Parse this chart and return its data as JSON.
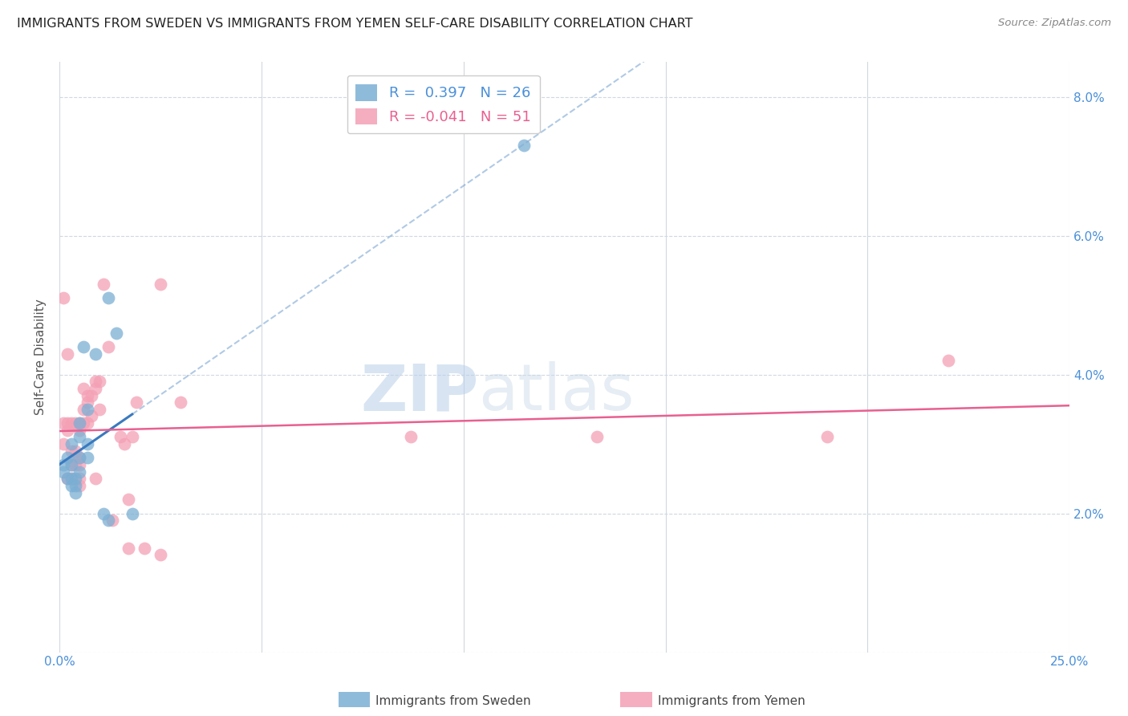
{
  "title": "IMMIGRANTS FROM SWEDEN VS IMMIGRANTS FROM YEMEN SELF-CARE DISABILITY CORRELATION CHART",
  "source": "Source: ZipAtlas.com",
  "ylabel": "Self-Care Disability",
  "xlim": [
    0.0,
    0.25
  ],
  "ylim": [
    0.0,
    0.085
  ],
  "xticks": [
    0.0,
    0.05,
    0.1,
    0.15,
    0.2,
    0.25
  ],
  "xticklabels": [
    "0.0%",
    "",
    "",
    "",
    "",
    "25.0%"
  ],
  "yticks": [
    0.0,
    0.02,
    0.04,
    0.06,
    0.08
  ],
  "yticklabels_right": [
    "",
    "2.0%",
    "4.0%",
    "6.0%",
    "8.0%"
  ],
  "sweden_color": "#7bafd4",
  "yemen_color": "#f4a0b5",
  "sweden_line_color": "#3a7abf",
  "yemen_line_color": "#e86090",
  "sweden_R": 0.397,
  "sweden_N": 26,
  "yemen_R": -0.041,
  "yemen_N": 51,
  "watermark_zip": "ZIP",
  "watermark_atlas": "atlas",
  "sweden_x": [
    0.001,
    0.001,
    0.002,
    0.002,
    0.003,
    0.003,
    0.003,
    0.003,
    0.004,
    0.004,
    0.004,
    0.005,
    0.005,
    0.005,
    0.005,
    0.006,
    0.007,
    0.007,
    0.007,
    0.009,
    0.011,
    0.012,
    0.012,
    0.014,
    0.018,
    0.115
  ],
  "sweden_y": [
    0.026,
    0.027,
    0.025,
    0.028,
    0.024,
    0.025,
    0.027,
    0.03,
    0.023,
    0.024,
    0.025,
    0.026,
    0.028,
    0.031,
    0.033,
    0.044,
    0.028,
    0.03,
    0.035,
    0.043,
    0.02,
    0.019,
    0.051,
    0.046,
    0.02,
    0.073
  ],
  "yemen_x": [
    0.001,
    0.001,
    0.001,
    0.002,
    0.002,
    0.002,
    0.002,
    0.003,
    0.003,
    0.003,
    0.003,
    0.004,
    0.004,
    0.004,
    0.004,
    0.005,
    0.005,
    0.005,
    0.005,
    0.005,
    0.005,
    0.006,
    0.006,
    0.006,
    0.007,
    0.007,
    0.007,
    0.008,
    0.008,
    0.009,
    0.009,
    0.009,
    0.01,
    0.01,
    0.011,
    0.012,
    0.013,
    0.015,
    0.016,
    0.017,
    0.017,
    0.018,
    0.019,
    0.021,
    0.025,
    0.025,
    0.03,
    0.087,
    0.133,
    0.19,
    0.22
  ],
  "yemen_y": [
    0.03,
    0.033,
    0.051,
    0.025,
    0.032,
    0.033,
    0.043,
    0.025,
    0.027,
    0.029,
    0.033,
    0.027,
    0.028,
    0.029,
    0.033,
    0.024,
    0.025,
    0.027,
    0.028,
    0.032,
    0.033,
    0.033,
    0.035,
    0.038,
    0.033,
    0.036,
    0.037,
    0.034,
    0.037,
    0.025,
    0.038,
    0.039,
    0.035,
    0.039,
    0.053,
    0.044,
    0.019,
    0.031,
    0.03,
    0.022,
    0.015,
    0.031,
    0.036,
    0.015,
    0.014,
    0.053,
    0.036,
    0.031,
    0.031,
    0.031,
    0.042
  ]
}
